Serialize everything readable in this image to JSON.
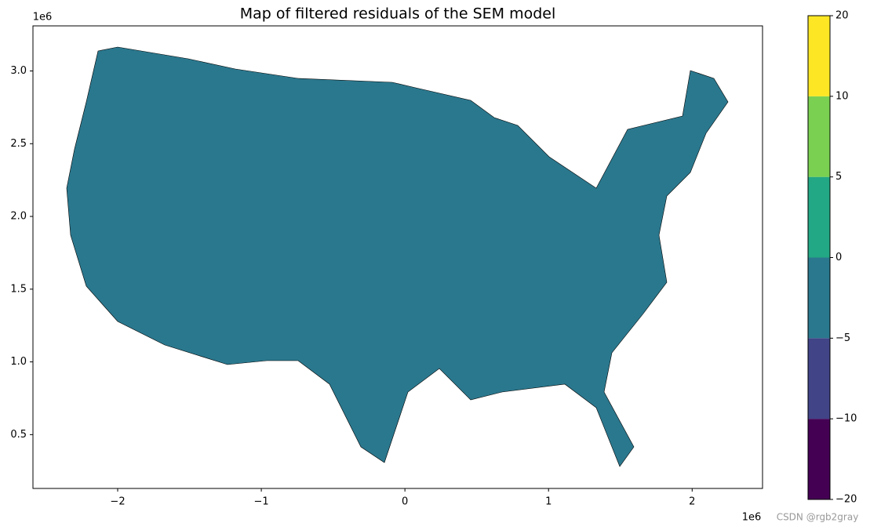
{
  "chart_data": {
    "type": "map",
    "title": "Map of filtered residuals of the SEM model",
    "xlim": [
      -2590000,
      2490000
    ],
    "xticks": [
      {
        "value": -2000000,
        "label": "−2"
      },
      {
        "value": -1000000,
        "label": "−1"
      },
      {
        "value": 0,
        "label": "0"
      },
      {
        "value": 1000000,
        "label": "1"
      },
      {
        "value": 2000000,
        "label": "2"
      }
    ],
    "x_offset_label": "1e6",
    "ylim": [
      130000,
      3310000
    ],
    "yticks": [
      {
        "value": 500000,
        "label": "0.5"
      },
      {
        "value": 1000000,
        "label": "1.0"
      },
      {
        "value": 1500000,
        "label": "1.5"
      },
      {
        "value": 2000000,
        "label": "2.0"
      },
      {
        "value": 2500000,
        "label": "2.5"
      },
      {
        "value": 3000000,
        "label": "3.0"
      }
    ],
    "y_offset_label": "1e6",
    "colorbar": {
      "ticks": [
        {
          "value": -20,
          "label": "−20"
        },
        {
          "value": -10,
          "label": "−10"
        },
        {
          "value": -5,
          "label": "−5"
        },
        0,
        5,
        10,
        20
      ],
      "colors": [
        "#440154",
        "#414487",
        "#2a788e",
        "#22a884",
        "#7ad151",
        "#fde725"
      ]
    },
    "watermark": "CSDN @rgb2gray"
  }
}
